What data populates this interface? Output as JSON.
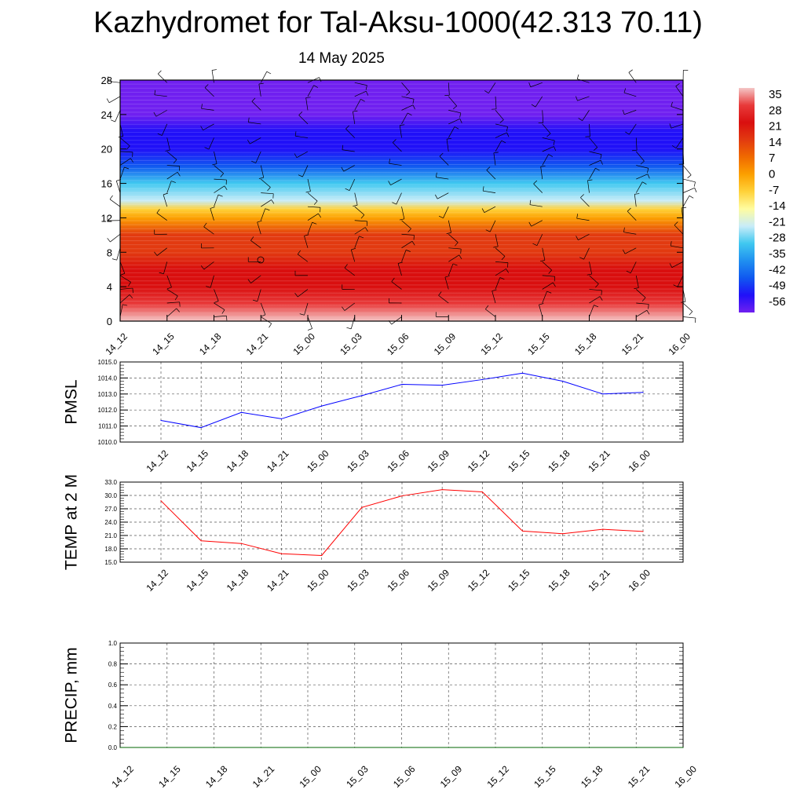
{
  "header": {
    "title": "Kazhydromet for Tal-Aksu-1000(42.313 70.11)",
    "subtitle": "14 May 2025"
  },
  "time_labels": [
    "14_12",
    "14_15",
    "14_18",
    "14_21",
    "15_00",
    "15_03",
    "15_06",
    "15_09",
    "15_12",
    "15_15",
    "15_18",
    "15_21",
    "16_00"
  ],
  "colors": {
    "pmsl_line": "#0000ff",
    "temp_line": "#ff0000",
    "precip_line": "#006400"
  },
  "chart_data": [
    {
      "type": "heatmap",
      "title": "",
      "xlabel": "",
      "ylabel": "",
      "x": [
        "14_12",
        "14_15",
        "14_18",
        "14_21",
        "15_00",
        "15_03",
        "15_06",
        "15_09",
        "15_12",
        "15_15",
        "15_18",
        "15_21",
        "16_00"
      ],
      "yticks": [
        0,
        4,
        8,
        12,
        16,
        20,
        24,
        28
      ],
      "ylim": [
        0,
        28
      ],
      "wind_barbs": true,
      "colorbar": {
        "labels": [
          "35",
          "28",
          "21",
          "14",
          "7",
          "0",
          "-7",
          "-14",
          "-21",
          "-28",
          "-35",
          "-42",
          "-49",
          "-56"
        ],
        "colors": [
          "#f4c6c6",
          "#e83a3a",
          "#d90f0f",
          "#e23a10",
          "#f06a00",
          "#fca000",
          "#ffd23a",
          "#fffca0",
          "#c8ecf8",
          "#40c8f0",
          "#2090f0",
          "#1058f0",
          "#2010f8",
          "#7020f0"
        ]
      },
      "value_profile": {
        "heights": [
          0,
          2,
          4,
          6,
          8,
          10,
          12,
          13,
          14,
          16,
          18,
          20,
          22,
          24,
          26,
          28
        ],
        "values": [
          32,
          28,
          24,
          20,
          16,
          10,
          2,
          -12,
          -22,
          -34,
          -44,
          -52,
          -54,
          -58,
          -60,
          -60
        ]
      }
    },
    {
      "type": "line",
      "title": "",
      "ylabel": "PMSL",
      "x": [
        "14_12",
        "14_15",
        "14_18",
        "14_21",
        "15_00",
        "15_03",
        "15_06",
        "15_09",
        "15_12",
        "15_15",
        "15_18",
        "15_21",
        "16_00"
      ],
      "yticks": [
        "1010.0",
        "1011.0",
        "1012.0",
        "1013.0",
        "1014.0",
        "1015.0"
      ],
      "ylim": [
        1010,
        1015
      ],
      "grid": true,
      "series": [
        {
          "values": [
            1011.35,
            1010.9,
            1011.85,
            1011.45,
            1012.25,
            1012.9,
            1013.6,
            1013.55,
            1013.9,
            1014.3,
            1013.8,
            1013.0,
            1013.1
          ]
        }
      ]
    },
    {
      "type": "line",
      "title": "",
      "ylabel": "TEMP at 2 M",
      "x": [
        "14_12",
        "14_15",
        "14_18",
        "14_21",
        "15_00",
        "15_03",
        "15_06",
        "15_09",
        "15_12",
        "15_15",
        "15_18",
        "15_21",
        "16_00"
      ],
      "yticks": [
        "15.0",
        "18.0",
        "21.0",
        "24.0",
        "27.0",
        "30.0",
        "33.0"
      ],
      "ylim": [
        15,
        33
      ],
      "grid": true,
      "series": [
        {
          "values": [
            28.8,
            19.8,
            19.2,
            16.9,
            16.5,
            27.3,
            29.9,
            31.3,
            30.8,
            22.0,
            21.4,
            22.4,
            21.9
          ]
        }
      ]
    },
    {
      "type": "line",
      "title": "",
      "ylabel": "PRECIP, mm",
      "x": [
        "14_12",
        "14_15",
        "14_18",
        "14_21",
        "15_00",
        "15_03",
        "15_06",
        "15_09",
        "15_12",
        "15_15",
        "15_18",
        "15_21",
        "16_00"
      ],
      "yticks": [
        "0.0",
        "0.2",
        "0.4",
        "0.6",
        "0.8",
        "1.0"
      ],
      "ylim": [
        0,
        1
      ],
      "grid": true,
      "series": [
        {
          "values": [
            0,
            0,
            0,
            0,
            0,
            0,
            0,
            0,
            0,
            0,
            0,
            0,
            0
          ]
        }
      ]
    }
  ]
}
